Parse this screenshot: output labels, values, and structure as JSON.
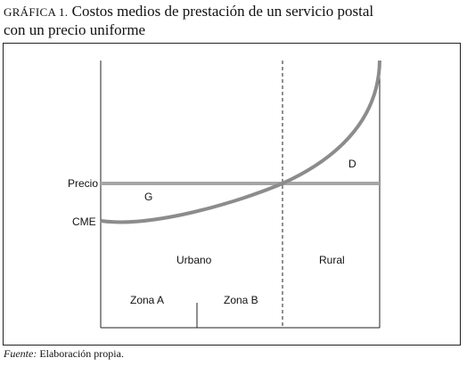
{
  "header": {
    "label": "Gráfica 1.",
    "title_line1": "Costos medios de prestación de un servicio postal",
    "title_line2": "con un precio uniforme"
  },
  "source": {
    "label": "Fuente:",
    "text": "Elaboración propia."
  },
  "chart_data": {
    "type": "line",
    "title": "Costos medios de prestación de un servicio postal con un precio uniforme",
    "series": [
      {
        "name": "Precio",
        "color": "#a6a6a6",
        "shape": "horizontal-line"
      },
      {
        "name": "CME",
        "color": "#8c8c8c",
        "shape": "rising-convex-curve"
      }
    ],
    "labels": {
      "price": "Precio",
      "cost": "CME",
      "area_gain": "G",
      "area_deficit": "D",
      "zone_urban": "Urbano",
      "zone_rural": "Rural",
      "zone_a": "Zona A",
      "zone_b": "Zona B"
    },
    "dashed_divider": "urbano | rural",
    "grid": false
  }
}
